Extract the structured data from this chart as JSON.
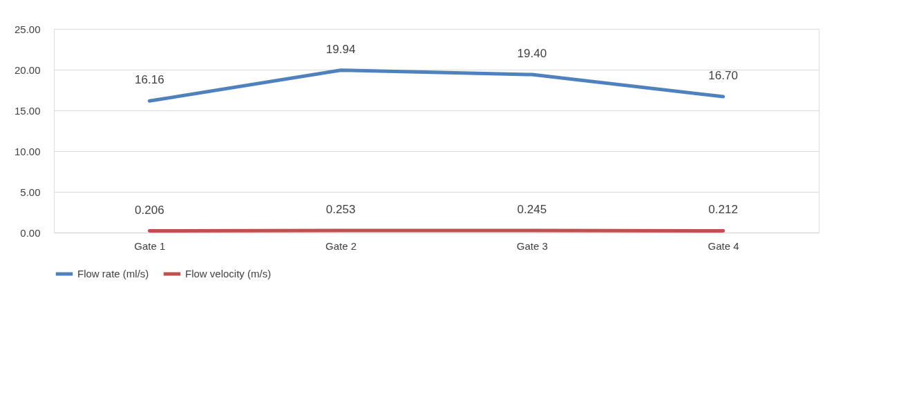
{
  "chart_data": {
    "type": "line",
    "categories": [
      "Gate  1",
      "Gate  2",
      "Gate  3",
      "Gate  4"
    ],
    "series": [
      {
        "name": "Flow rate (ml/s)",
        "color": "#4f81bd",
        "values": [
          16.16,
          19.94,
          19.4,
          16.7
        ],
        "value_labels": [
          "16.16",
          "19.94",
          "19.40",
          "16.70"
        ]
      },
      {
        "name": "Flow velocity (m/s)",
        "color": "#c0504d",
        "values": [
          0.206,
          0.253,
          0.245,
          0.212
        ],
        "value_labels": [
          "0.206",
          "0.253",
          "0.245",
          "0.212"
        ]
      }
    ],
    "ylim": [
      0,
      25
    ],
    "yticks": [
      {
        "value": 0,
        "label": "0.00"
      },
      {
        "value": 5,
        "label": "5.00"
      },
      {
        "value": 10,
        "label": "10.00"
      },
      {
        "value": 15,
        "label": "15.00"
      },
      {
        "value": 20,
        "label": "20.00"
      },
      {
        "value": 25,
        "label": "25.00"
      }
    ],
    "grid": "y",
    "legend": "bottom",
    "marker": "none",
    "line_style": "solid"
  }
}
